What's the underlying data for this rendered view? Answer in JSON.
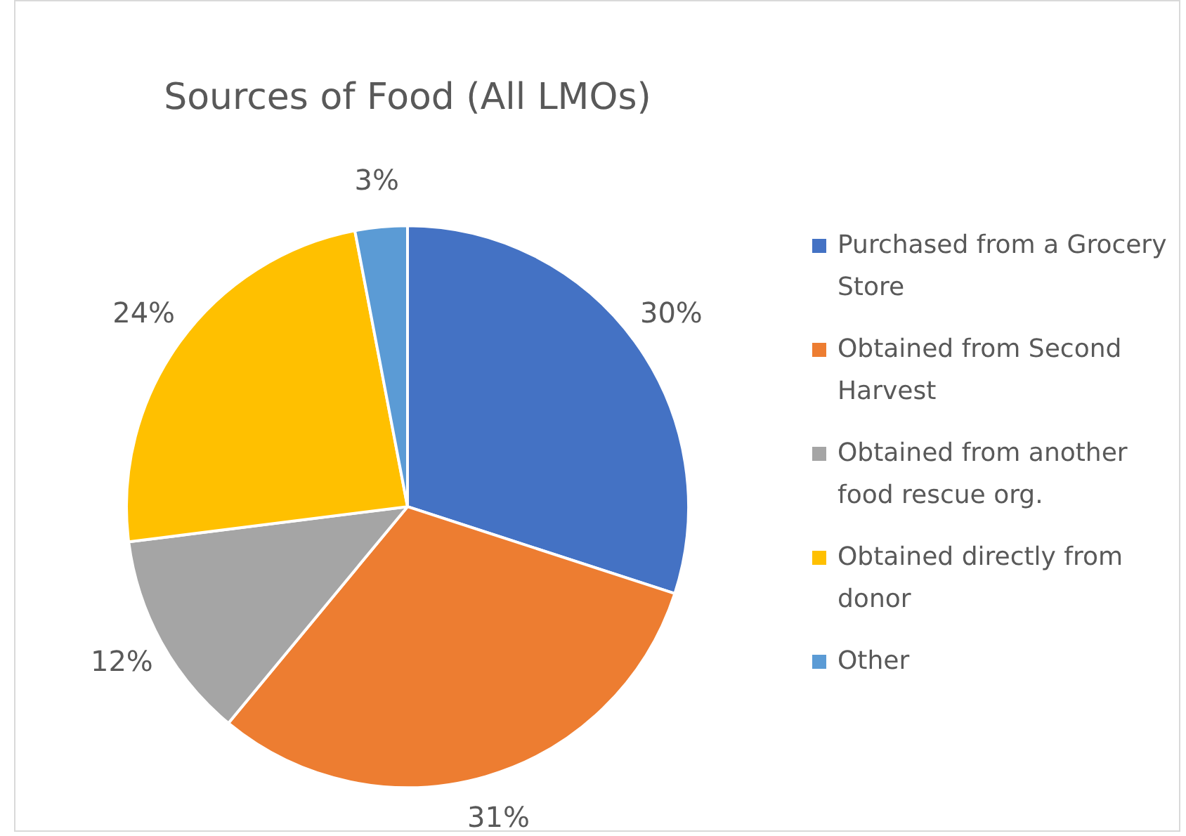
{
  "chart_data": {
    "type": "pie",
    "title": "Sources of Food (All LMOs)",
    "categories": [
      "Purchased from a Grocery Store",
      "Obtained from Second Harvest",
      "Obtained from another food rescue org.",
      "Obtained directly from donor",
      "Other"
    ],
    "values": [
      30,
      31,
      12,
      24,
      3
    ],
    "colors": [
      "#4472c4",
      "#ed7d31",
      "#a5a5a5",
      "#ffc000",
      "#5b9bd5"
    ],
    "value_labels": [
      "30%",
      "31%",
      "12%",
      "24%",
      "3%"
    ],
    "legend": "right"
  }
}
